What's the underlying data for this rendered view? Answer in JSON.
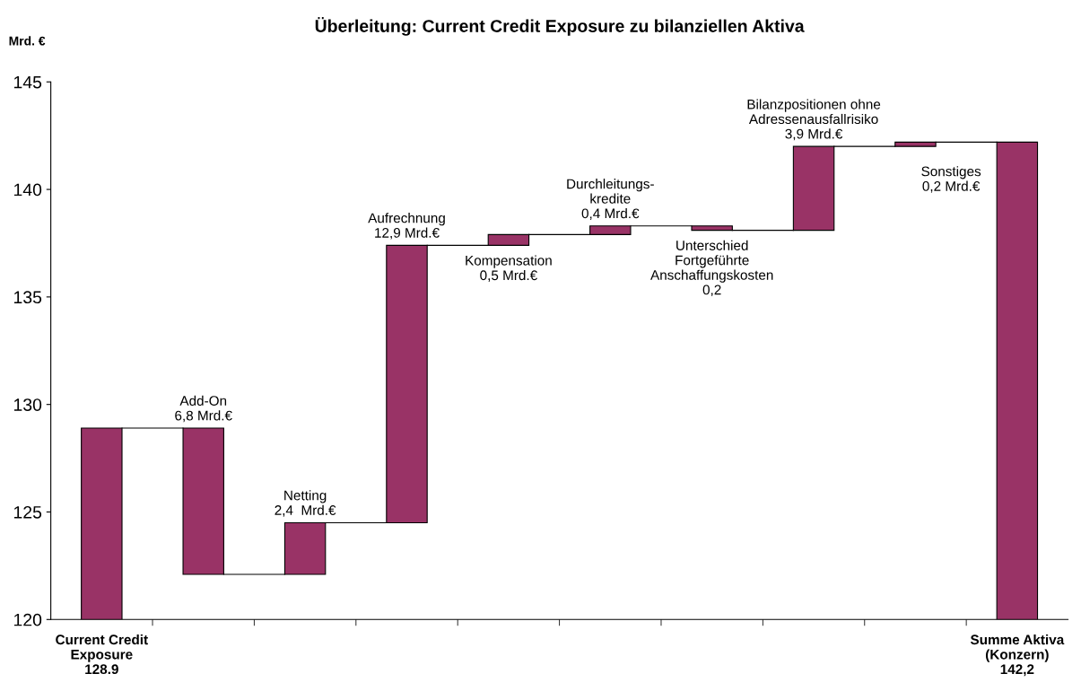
{
  "chart_data": {
    "type": "bar",
    "title": "Überleitung: Current Credit Exposure zu bilanziellen Aktiva",
    "ylabel": "Mrd. €",
    "categories": [
      "Current Credit\nExposure\n128.9",
      null,
      null,
      null,
      null,
      null,
      null,
      null,
      null,
      "Summe Aktiva\n(Konzern)\n142,2"
    ],
    "values": [
      8.9,
      6.8,
      2.4,
      12.9,
      0.5,
      0.4,
      0.2,
      3.9,
      0.2,
      22.2
    ],
    "base": [
      120,
      122.1,
      122.1,
      124.5,
      137.4,
      137.9,
      138.1,
      138.1,
      142.0,
      120
    ],
    "color": "#993366",
    "ylim": [
      120,
      145
    ],
    "yticks": [
      120,
      125,
      130,
      135,
      140,
      145
    ],
    "grid": false,
    "legend": false,
    "annotations": [
      {
        "text": "Add-On\n6,8 Mrd.€",
        "y": 128.9
      },
      {
        "text": "Netting\n2,4  Mrd.€",
        "y": 124.5
      },
      {
        "text": "Aufrechnung\n12,9 Mrd.€",
        "y": 137.4
      },
      {
        "text": "Kompensation\n0,5 Mrd.€",
        "y": 137.4
      },
      {
        "text": "Durchleitungs-\nkredite\n0,4 Mrd.€",
        "y": 138.3
      },
      {
        "text": "Unterschied\nFortgeführte\nAnschaffungskosten\n0,2",
        "y": 138.1
      },
      {
        "text": "Bilanzpositionen ohne\nAdressenausfallrisiko\n3,9 Mrd.€",
        "y": 142.0
      },
      "Sonstiges\n0,2 Mrd.€"
    ]
  }
}
